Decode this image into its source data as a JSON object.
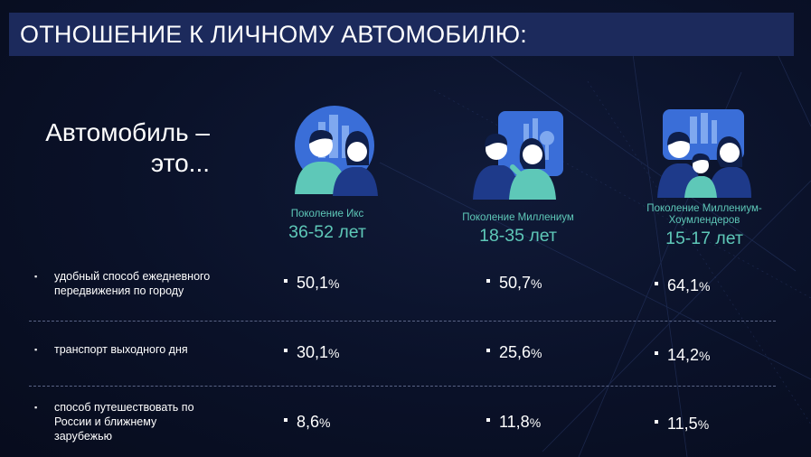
{
  "title": "ОТНОШЕНИЕ К ЛИЧНОМУ АВТОМОБИЛЮ:",
  "heading_line1": "Автомобиль –",
  "heading_line2": "это...",
  "generations": [
    {
      "name": "Поколение Икс",
      "age": "36-52 лет",
      "icon": "people-city-icon"
    },
    {
      "name": "Поколение Миллениум",
      "age": "18-35 лет",
      "icon": "people-wifi-icon"
    },
    {
      "name_line1": "Поколение Миллениум-",
      "name_line2": "Хоумлендеров",
      "age": "15-17 лет",
      "icon": "family-icon"
    }
  ],
  "rows": [
    {
      "label_line1": "удобный способ ежедневного",
      "label_line2": "передвижения по городу",
      "label_line3": "",
      "values": [
        "50,1",
        "50,7",
        "64,1"
      ]
    },
    {
      "label_line1": "транспорт выходного дня",
      "label_line2": "",
      "label_line3": "",
      "values": [
        "30,1",
        "25,6",
        "14,2"
      ]
    },
    {
      "label_line1": "способ путешествовать по",
      "label_line2": "России и ближнему",
      "label_line3": "зарубежью",
      "values": [
        "8,6",
        "11,8",
        "11,5"
      ]
    }
  ],
  "percent_sign": "%",
  "bullet_glyph": "▪",
  "colors": {
    "title_bar": "#1c2a5c",
    "accent_teal": "#5ec8b8",
    "icon_blue": "#3a6ed8",
    "background": "#0a1128"
  }
}
